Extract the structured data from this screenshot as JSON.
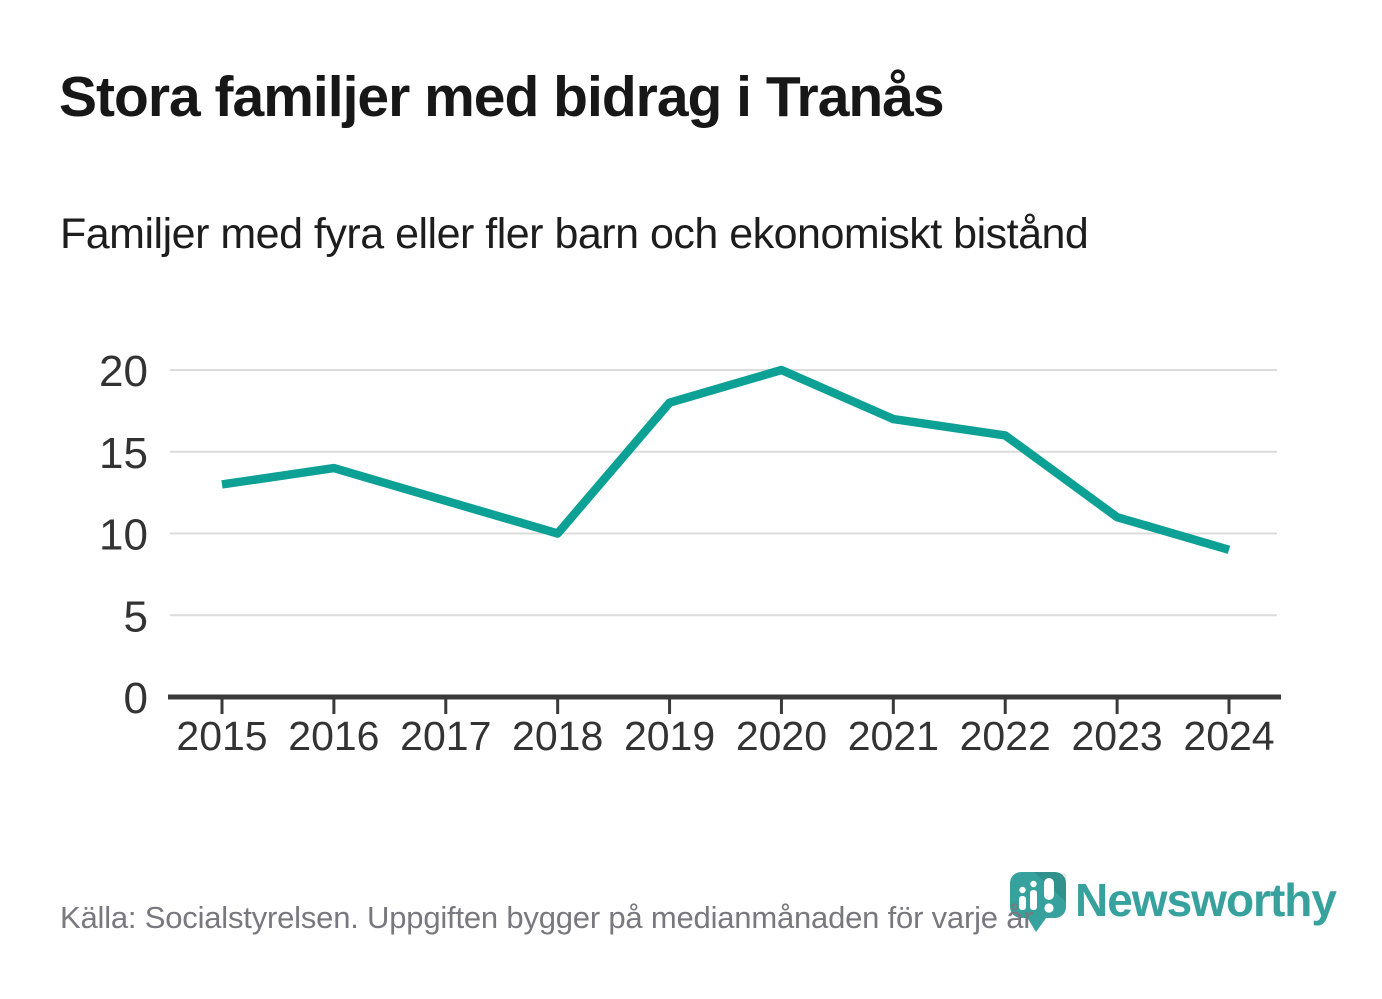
{
  "header": {
    "title": "Stora familjer med bidrag i Tranås",
    "subtitle": "Familjer med fyra eller fler barn och ekonomiskt bistånd"
  },
  "footer": {
    "source": "Källa: Socialstyrelsen. Uppgiften bygger på medianmånaden för varje år",
    "brand": "Newsworthy"
  },
  "colors": {
    "line": "#0da196",
    "brand": "#37a29d",
    "grid": "#dcdcdc",
    "axis": "#3a3a3a",
    "tick_label": "#333333",
    "title_text": "#171717",
    "muted_text": "#78787e"
  },
  "chart_data": {
    "type": "line",
    "title": "Stora familjer med bidrag i Tranås",
    "subtitle": "Familjer med fyra eller fler barn och ekonomiskt bistånd",
    "categories": [
      "2015",
      "2016",
      "2017",
      "2018",
      "2019",
      "2020",
      "2021",
      "2022",
      "2023",
      "2024"
    ],
    "values": [
      13,
      14,
      12,
      10,
      18,
      20,
      17,
      16,
      11,
      9
    ],
    "series": [
      {
        "name": "Familjer med fyra eller fler barn och ekonomiskt bistånd",
        "values": [
          13,
          14,
          12,
          10,
          18,
          20,
          17,
          16,
          11,
          9
        ]
      }
    ],
    "xlabel": "",
    "ylabel": "",
    "ylim": [
      0,
      20
    ],
    "yticks": [
      0,
      5,
      10,
      15,
      20
    ],
    "grid": true,
    "legend": "none",
    "line_color": "#0da196"
  }
}
